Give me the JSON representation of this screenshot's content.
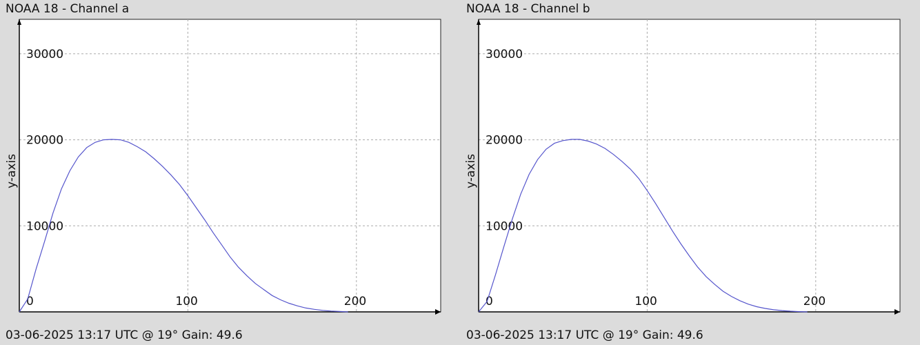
{
  "chart_data": [
    {
      "type": "line",
      "title": "NOAA 18 - Channel a",
      "footer": "03-06-2025 13:17 UTC @ 19° Gain: 49.6",
      "xlabel": "",
      "ylabel": "y-axis",
      "xlim": [
        0,
        250
      ],
      "ylim": [
        0,
        34000
      ],
      "xticks": [
        0,
        100,
        200
      ],
      "yticks": [
        10000,
        20000,
        30000
      ],
      "grid": true,
      "series": [
        {
          "color": "#5555cc",
          "x": [
            0,
            5,
            10,
            15,
            20,
            25,
            30,
            35,
            40,
            45,
            50,
            55,
            60,
            65,
            70,
            75,
            80,
            85,
            90,
            95,
            100,
            105,
            110,
            115,
            120,
            125,
            130,
            135,
            140,
            145,
            150,
            155,
            160,
            165,
            170,
            175,
            180,
            185,
            190,
            195
          ],
          "y": [
            0,
            1500,
            5000,
            8200,
            11500,
            14300,
            16400,
            18000,
            19100,
            19700,
            20000,
            20050,
            20000,
            19700,
            19200,
            18600,
            17800,
            16900,
            15900,
            14800,
            13500,
            12100,
            10700,
            9200,
            7800,
            6400,
            5200,
            4200,
            3300,
            2600,
            1900,
            1400,
            1000,
            700,
            450,
            300,
            180,
            100,
            50,
            0
          ]
        }
      ]
    },
    {
      "type": "line",
      "title": "NOAA 18 - Channel b",
      "footer": "03-06-2025 13:17 UTC @ 19° Gain: 49.6",
      "xlabel": "",
      "ylabel": "y-axis",
      "xlim": [
        0,
        250
      ],
      "ylim": [
        0,
        34000
      ],
      "xticks": [
        0,
        100,
        200
      ],
      "yticks": [
        10000,
        20000,
        30000
      ],
      "grid": true,
      "series": [
        {
          "color": "#5555cc",
          "x": [
            0,
            5,
            10,
            15,
            20,
            25,
            30,
            35,
            40,
            45,
            50,
            55,
            60,
            65,
            70,
            75,
            80,
            85,
            90,
            95,
            100,
            105,
            110,
            115,
            120,
            125,
            130,
            135,
            140,
            145,
            150,
            155,
            160,
            165,
            170,
            175,
            180,
            185,
            190,
            195
          ],
          "y": [
            0,
            1200,
            4300,
            7600,
            10800,
            13700,
            16000,
            17700,
            18900,
            19600,
            19900,
            20050,
            20050,
            19850,
            19500,
            19000,
            18300,
            17500,
            16600,
            15500,
            14100,
            12600,
            11000,
            9400,
            7900,
            6500,
            5200,
            4100,
            3200,
            2400,
            1800,
            1300,
            900,
            600,
            400,
            250,
            150,
            80,
            30,
            0
          ]
        }
      ]
    }
  ]
}
